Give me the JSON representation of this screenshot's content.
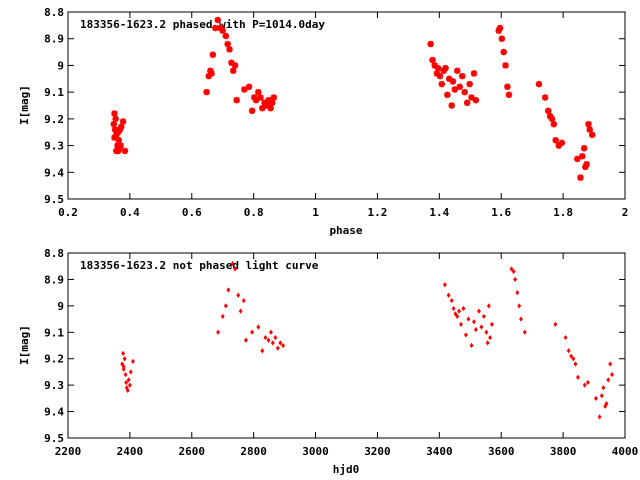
{
  "chart_data": [
    {
      "type": "scatter",
      "title": "183356-1623.2 phased with P=1014.0day",
      "xlabel": "phase",
      "ylabel": "I[mag]",
      "xlim": [
        0.2,
        2.0
      ],
      "ylim": [
        9.5,
        8.8
      ],
      "y_inverted": true,
      "xticks": [
        "0.2",
        "0.4",
        "0.6",
        "0.8",
        "1",
        "1.2",
        "1.4",
        "1.6",
        "1.8",
        "2"
      ],
      "yticks": [
        "8.8",
        "8.9",
        "9",
        "9.1",
        "9.2",
        "9.3",
        "9.4",
        "9.5"
      ],
      "grid": false,
      "marker_color": "#ff0000",
      "marker": "cross",
      "series": [
        {
          "x": [
            0.348,
            0.35,
            0.352,
            0.354,
            0.356,
            0.358,
            0.36,
            0.362,
            0.364,
            0.366,
            0.368,
            0.37,
            0.372,
            0.378,
            0.384,
            0.35,
            0.356,
            0.362,
            0.648,
            0.655,
            0.66,
            0.664,
            0.668,
            0.676,
            0.684,
            0.692,
            0.7,
            0.71,
            0.716,
            0.722,
            0.728,
            0.734,
            0.74,
            0.745,
            0.77,
            0.785,
            0.795,
            0.802,
            0.808,
            0.815,
            0.822,
            0.828,
            0.835,
            0.842,
            0.848,
            0.855,
            0.86,
            0.865,
            1.372,
            1.378,
            1.385,
            1.392,
            1.396,
            1.402,
            1.408,
            1.414,
            1.42,
            1.426,
            1.432,
            1.44,
            1.444,
            1.45,
            1.458,
            1.466,
            1.474,
            1.482,
            1.49,
            1.498,
            1.504,
            1.512,
            1.518,
            1.592,
            1.596,
            1.602,
            1.608,
            1.614,
            1.62,
            1.625,
            1.722,
            1.742,
            1.752,
            1.758,
            1.764,
            1.77,
            1.776,
            1.786,
            1.796,
            1.846,
            1.856,
            1.862,
            1.868,
            1.872,
            1.876,
            1.882,
            1.886,
            1.894
          ],
          "y": [
            9.22,
            9.18,
            9.24,
            9.2,
            9.26,
            9.25,
            9.3,
            9.32,
            9.28,
            9.31,
            9.24,
            9.3,
            9.23,
            9.21,
            9.32,
            9.27,
            9.32,
            9.25,
            9.1,
            9.04,
            9.02,
            9.03,
            8.96,
            8.86,
            8.83,
            8.86,
            8.87,
            8.89,
            8.92,
            8.94,
            8.99,
            9.02,
            9.0,
            9.13,
            9.09,
            9.08,
            9.17,
            9.12,
            9.13,
            9.1,
            9.12,
            9.16,
            9.14,
            9.15,
            9.13,
            9.16,
            9.14,
            9.12,
            8.92,
            8.98,
            9.0,
            9.03,
            9.01,
            9.04,
            9.07,
            9.02,
            9.01,
            9.11,
            9.05,
            9.15,
            9.06,
            9.09,
            9.02,
            9.08,
            9.04,
            9.1,
            9.14,
            9.07,
            9.12,
            9.03,
            9.13,
            8.87,
            8.86,
            8.9,
            8.95,
            9.0,
            9.08,
            9.11,
            9.07,
            9.12,
            9.17,
            9.19,
            9.2,
            9.22,
            9.28,
            9.3,
            9.29,
            9.35,
            9.42,
            9.34,
            9.31,
            9.38,
            9.37,
            9.22,
            9.24,
            9.26
          ]
        }
      ]
    },
    {
      "type": "scatter",
      "title": "183356-1623.2 not phased light curve",
      "xlabel": "hjd0",
      "ylabel": "I[mag]",
      "xlim": [
        2200,
        4000
      ],
      "ylim": [
        9.5,
        8.8
      ],
      "y_inverted": true,
      "xticks": [
        "2200",
        "2400",
        "2600",
        "2800",
        "3000",
        "3200",
        "3400",
        "3600",
        "3800",
        "4000"
      ],
      "yticks": [
        "8.8",
        "8.9",
        "9",
        "9.1",
        "9.2",
        "9.3",
        "9.4",
        "9.5"
      ],
      "grid": false,
      "marker_color": "#ff0000",
      "marker": "diamond",
      "series": [
        {
          "x": [
            2375,
            2378,
            2380,
            2383,
            2386,
            2390,
            2393,
            2396,
            2400,
            2403,
            2410,
            2380,
            2388,
            2685,
            2700,
            2710,
            2718,
            2732,
            2740,
            2750,
            2758,
            2768,
            2775,
            2795,
            2815,
            2828,
            2838,
            2848,
            2856,
            2862,
            2870,
            2878,
            2886,
            2895,
            3418,
            3430,
            3440,
            3446,
            3452,
            3458,
            3464,
            3470,
            3478,
            3486,
            3494,
            3504,
            3512,
            3518,
            3528,
            3536,
            3544,
            3552,
            3556,
            3560,
            3564,
            3570,
            3633,
            3640,
            3645,
            3652,
            3658,
            3664,
            3676,
            3775,
            3808,
            3818,
            3826,
            3833,
            3840,
            3848,
            3870,
            3880,
            3906,
            3918,
            3925,
            3930,
            3936,
            3940,
            3946,
            3952,
            3958
          ],
          "y": [
            9.22,
            9.18,
            9.24,
            9.2,
            9.26,
            9.31,
            9.32,
            9.28,
            9.3,
            9.25,
            9.21,
            9.23,
            9.29,
            9.1,
            9.04,
            9.0,
            8.94,
            8.84,
            8.86,
            8.96,
            9.02,
            8.98,
            9.13,
            9.1,
            9.08,
            9.17,
            9.12,
            9.13,
            9.1,
            9.14,
            9.12,
            9.16,
            9.14,
            9.15,
            8.92,
            8.96,
            8.98,
            9.01,
            9.03,
            9.04,
            9.02,
            9.07,
            9.01,
            9.11,
            9.05,
            9.15,
            9.06,
            9.09,
            9.02,
            9.08,
            9.04,
            9.1,
            9.14,
            9.0,
            9.12,
            9.07,
            8.86,
            8.87,
            8.9,
            8.95,
            9.0,
            9.05,
            9.1,
            9.07,
            9.12,
            9.17,
            9.19,
            9.2,
            9.22,
            9.27,
            9.3,
            9.29,
            9.35,
            9.42,
            9.34,
            9.31,
            9.38,
            9.37,
            9.28,
            9.22,
            9.26
          ]
        }
      ]
    }
  ]
}
